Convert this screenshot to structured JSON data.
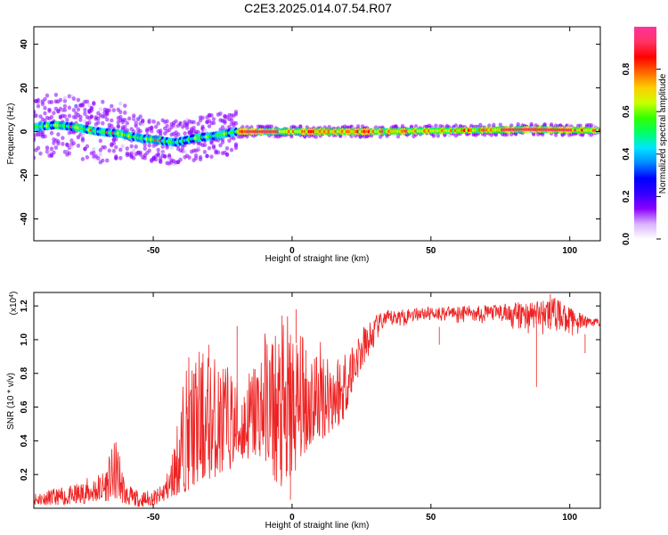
{
  "chart_data": [
    {
      "type": "heatmap",
      "title": "C2E3.2025.014.07.54.R07",
      "xlabel": "Height of straight line (km)",
      "ylabel": "Frequency (Hz)",
      "xlim": [
        -93,
        111
      ],
      "ylim": [
        -50,
        48
      ],
      "xticks": [
        -50,
        0,
        50,
        100
      ],
      "yticks": [
        -40,
        -20,
        0,
        20,
        40
      ],
      "colorbar": {
        "label": "Normalized spectral amplitude",
        "range": [
          0,
          1
        ],
        "ticks": [
          "0.0",
          "0.2",
          "0.4",
          "0.6",
          "0.8"
        ],
        "colors": [
          "#ffffff",
          "#d9b3ff",
          "#8a00ff",
          "#3300ff",
          "#0000ff",
          "#0088ff",
          "#00e5ff",
          "#00ff66",
          "#33ff00",
          "#ccff00",
          "#ffcc00",
          "#ff6600",
          "#ff0000",
          "#ff3366",
          "#ff3399"
        ]
      },
      "ridge": [
        {
          "x": -93,
          "f": 2
        },
        {
          "x": -85,
          "f": 3
        },
        {
          "x": -78,
          "f": 2
        },
        {
          "x": -70,
          "f": 0
        },
        {
          "x": -62,
          "f": -1
        },
        {
          "x": -55,
          "f": -3
        },
        {
          "x": -48,
          "f": -4
        },
        {
          "x": -42,
          "f": -5
        },
        {
          "x": -35,
          "f": -3
        },
        {
          "x": -28,
          "f": -2
        },
        {
          "x": -20,
          "f": 0
        },
        {
          "x": -10,
          "f": 0
        },
        {
          "x": 0,
          "f": 0
        },
        {
          "x": 10,
          "f": 0
        },
        {
          "x": 30,
          "f": 0
        },
        {
          "x": 60,
          "f": 0.5
        },
        {
          "x": 85,
          "f": 1
        },
        {
          "x": 111,
          "f": 0.5
        }
      ]
    },
    {
      "type": "line",
      "xlabel": "Height of straight line (km)",
      "ylabel": "SNR (10 * v/v)",
      "scale_label": "(x10",
      "scale_exp": "4",
      "xlim": [
        -93,
        111
      ],
      "ylim": [
        0,
        1.28
      ],
      "xticks": [
        -50,
        0,
        50,
        100
      ],
      "yticks": [
        "0.2",
        "0.4",
        "0.6",
        "0.8",
        "1.0",
        "1.2"
      ],
      "series": [
        {
          "name": "SNR",
          "color": "#ee2222",
          "envelope": [
            {
              "x": -93,
              "lo": 0.02,
              "hi": 0.1
            },
            {
              "x": -80,
              "lo": 0.02,
              "hi": 0.13
            },
            {
              "x": -68,
              "lo": 0.04,
              "hi": 0.23
            },
            {
              "x": -63,
              "lo": 0.05,
              "hi": 0.43
            },
            {
              "x": -60,
              "lo": 0.02,
              "hi": 0.15
            },
            {
              "x": -55,
              "lo": 0.01,
              "hi": 0.1
            },
            {
              "x": -48,
              "lo": 0.02,
              "hi": 0.12
            },
            {
              "x": -44,
              "lo": 0.06,
              "hi": 0.25
            },
            {
              "x": -38,
              "lo": 0.1,
              "hi": 0.9
            },
            {
              "x": -33,
              "lo": 0.15,
              "hi": 0.95
            },
            {
              "x": -25,
              "lo": 0.2,
              "hi": 0.9
            },
            {
              "x": -18,
              "lo": 0.28,
              "hi": 0.75
            },
            {
              "x": -10,
              "lo": 0.3,
              "hi": 1.05
            },
            {
              "x": -6,
              "lo": 0.15,
              "hi": 1.12
            },
            {
              "x": -2,
              "lo": 0.05,
              "hi": 1.18
            },
            {
              "x": 3,
              "lo": 0.3,
              "hi": 1.05
            },
            {
              "x": 10,
              "lo": 0.4,
              "hi": 1.02
            },
            {
              "x": 18,
              "lo": 0.5,
              "hi": 0.95
            },
            {
              "x": 23,
              "lo": 0.75,
              "hi": 1.05
            },
            {
              "x": 28,
              "lo": 0.92,
              "hi": 1.12
            },
            {
              "x": 33,
              "lo": 1.03,
              "hi": 1.17
            },
            {
              "x": 45,
              "lo": 1.1,
              "hi": 1.19
            },
            {
              "x": 60,
              "lo": 1.1,
              "hi": 1.2
            },
            {
              "x": 75,
              "lo": 1.08,
              "hi": 1.21
            },
            {
              "x": 85,
              "lo": 1.0,
              "hi": 1.23
            },
            {
              "x": 95,
              "lo": 1.02,
              "hi": 1.25
            },
            {
              "x": 103,
              "lo": 1.02,
              "hi": 1.16
            },
            {
              "x": 111,
              "lo": 1.08,
              "hi": 1.12
            }
          ],
          "spikes": [
            {
              "x": -30,
              "y": 0.97
            },
            {
              "x": -19.8,
              "y": 1.08
            },
            {
              "x": -0.6,
              "y": 0.05
            },
            {
              "x": 1.5,
              "y": 1.18
            },
            {
              "x": 5,
              "y": 0.38
            },
            {
              "x": 53,
              "y": 0.97
            },
            {
              "x": 88,
              "y": 0.72
            },
            {
              "x": 93,
              "y": 1.27
            },
            {
              "x": 105.5,
              "y": 0.92
            }
          ]
        }
      ]
    }
  ]
}
